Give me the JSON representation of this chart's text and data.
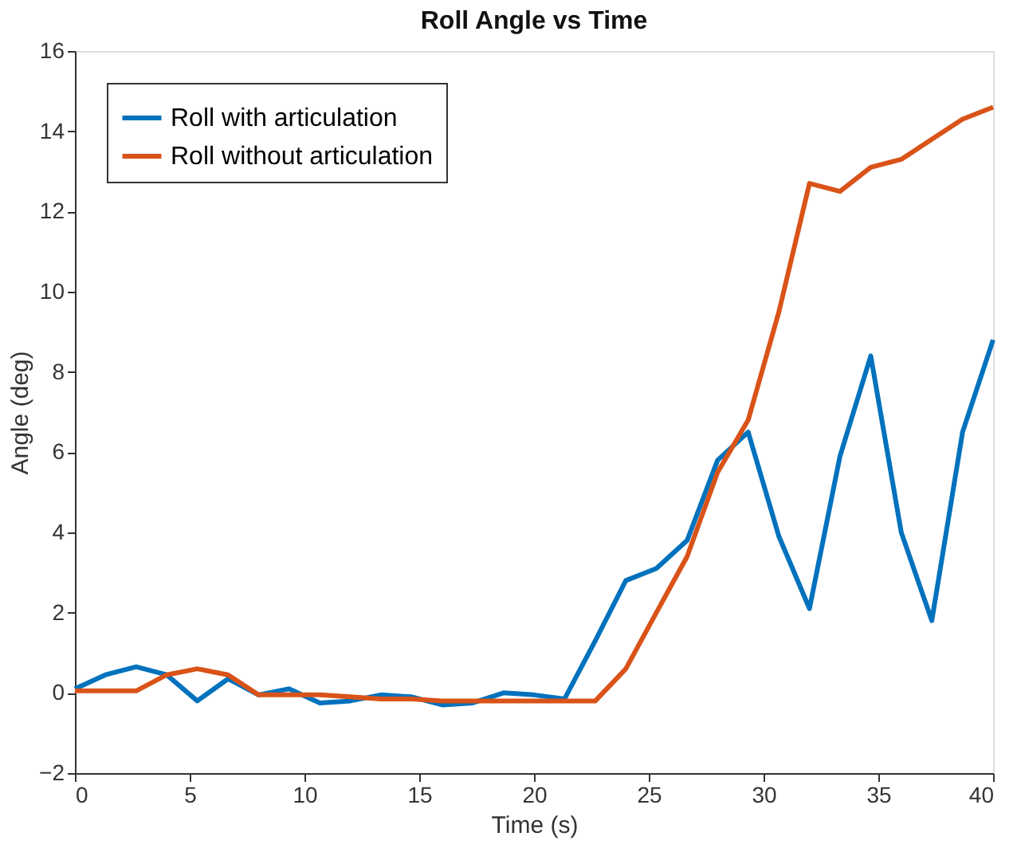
{
  "chart_data": {
    "type": "line",
    "title": "Roll Angle vs Time",
    "xlabel": "Time (s)",
    "ylabel": "Angle (deg)",
    "x": [
      0,
      1.33,
      2.67,
      4,
      5.33,
      6.67,
      8,
      9.33,
      10.67,
      12,
      13.33,
      14.67,
      16,
      17.33,
      18.67,
      20,
      21.33,
      22.67,
      24,
      25.33,
      26.67,
      28,
      29.33,
      30.67,
      32,
      33.33,
      34.67,
      36,
      37.33,
      38.67,
      40
    ],
    "series": [
      {
        "name": "Roll with articulation",
        "color": "#0072bd",
        "values": [
          0.1,
          0.45,
          0.65,
          0.45,
          -0.2,
          0.35,
          -0.05,
          0.1,
          -0.25,
          -0.2,
          -0.05,
          -0.1,
          -0.3,
          -0.25,
          0.0,
          -0.05,
          -0.15,
          1.3,
          2.8,
          3.1,
          3.8,
          5.8,
          6.5,
          3.9,
          2.1,
          5.9,
          8.4,
          4.0,
          1.8,
          6.5,
          8.8
        ]
      },
      {
        "name": "Roll without articulation",
        "color": "#d95319",
        "values": [
          0.05,
          0.05,
          0.05,
          0.45,
          0.6,
          0.45,
          -0.05,
          -0.05,
          -0.05,
          -0.1,
          -0.15,
          -0.15,
          -0.2,
          -0.2,
          -0.2,
          -0.2,
          -0.2,
          -0.2,
          0.6,
          2.0,
          3.4,
          5.5,
          6.8,
          9.5,
          12.7,
          12.5,
          13.1,
          13.3,
          13.8,
          14.3,
          14.6
        ]
      }
    ],
    "xlim": [
      0,
      40
    ],
    "xticks": [
      0,
      5,
      10,
      15,
      20,
      25,
      30,
      35,
      40
    ],
    "ylim": [
      -2,
      16
    ],
    "yticks": [
      -2,
      0,
      2,
      4,
      6,
      8,
      10,
      12,
      14,
      16
    ],
    "grid": false,
    "legend": "top left",
    "marker": "none",
    "line_style": "solid"
  }
}
